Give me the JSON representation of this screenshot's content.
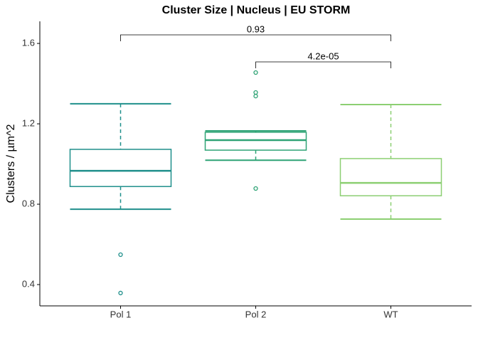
{
  "chart_data": {
    "type": "box",
    "title": "Cluster Size | Nucleus | EU STORM",
    "y_label": "Clusters / µm^2",
    "categories": [
      "Pol 1",
      "Pol 2",
      "WT"
    ],
    "colors": [
      "#1f8f8b",
      "#2ea375",
      "#8ccf72"
    ],
    "boxes": [
      {
        "whisker_low": 0.775,
        "q1": 0.888,
        "median": 0.966,
        "q3": 1.073,
        "whisker_high": 1.3,
        "outliers": [
          0.549,
          0.358
        ]
      },
      {
        "whisker_low": 1.019,
        "q1": 1.069,
        "median": 1.119,
        "q3": 1.158,
        "whisker_high": 1.165,
        "outliers": [
          1.455,
          1.356,
          1.338,
          0.878
        ]
      },
      {
        "whisker_low": 0.726,
        "q1": 0.842,
        "median": 0.906,
        "q3": 1.027,
        "whisker_high": 1.296,
        "outliers": []
      }
    ],
    "annotations": [
      {
        "text": "0.93",
        "groups": [
          "Pol 1",
          "WT"
        ]
      },
      {
        "text": "4.2e-05",
        "groups": [
          "Pol 2",
          "WT"
        ]
      }
    ],
    "ylim": [
      0.294,
      1.71
    ],
    "yticks": [
      {
        "value": 0.4,
        "label": "0.4"
      },
      {
        "value": 0.8,
        "label": "0.8"
      },
      {
        "value": 1.2,
        "label": "1.2"
      },
      {
        "value": 1.6,
        "label": "1.6"
      }
    ]
  }
}
